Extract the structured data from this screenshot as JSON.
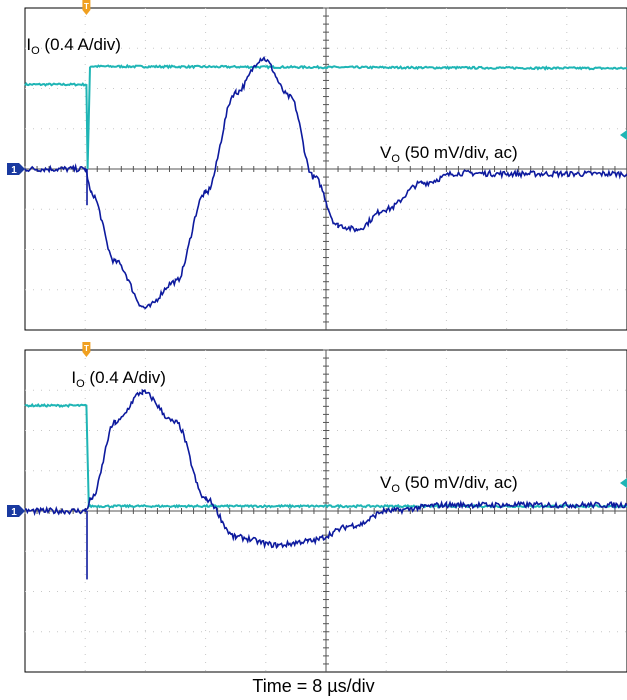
{
  "colors": {
    "current_trace": "#1fb5b5",
    "voltage_trace": "#0d1a9e",
    "trigger_marker": "#f0a020",
    "ground_marker": "#1a3aa0",
    "grid": "#c8c8c8",
    "frame": "#000000"
  },
  "x_axis_label": "Time = 8 µs/div",
  "chart_data": [
    {
      "type": "line",
      "title": "",
      "grid": true,
      "divisions": {
        "x": 10,
        "y": 8
      },
      "markers": {
        "trigger": "T",
        "ground": "1"
      },
      "series": [
        {
          "name": "IO (0.4 A/div)",
          "label_main": "I",
          "label_sub": "O",
          "label_rest": " (0.4 A/div)",
          "points": [
            [
              0,
              2.1
            ],
            [
              1.02,
              2.1
            ],
            [
              1.04,
              0.0
            ],
            [
              1.08,
              2.55
            ],
            [
              10,
              2.5
            ]
          ]
        },
        {
          "name": "VO (50 mV/div, ac)",
          "label_main": "V",
          "label_sub": "O",
          "label_rest": " (50 mV/div, ac)",
          "points": [
            [
              0,
              0.0
            ],
            [
              1.0,
              0.0
            ],
            [
              1.1,
              -0.6
            ],
            [
              1.5,
              -2.3
            ],
            [
              2.0,
              -3.45
            ],
            [
              2.5,
              -2.8
            ],
            [
              3.0,
              -0.6
            ],
            [
              3.5,
              1.9
            ],
            [
              3.95,
              2.75
            ],
            [
              4.4,
              1.8
            ],
            [
              4.8,
              -0.2
            ],
            [
              5.2,
              -1.4
            ],
            [
              5.5,
              -1.5
            ],
            [
              6.0,
              -1.0
            ],
            [
              6.6,
              -0.35
            ],
            [
              7.2,
              -0.1
            ],
            [
              8.0,
              -0.12
            ],
            [
              9.0,
              -0.12
            ],
            [
              10,
              -0.12
            ]
          ]
        }
      ]
    },
    {
      "type": "line",
      "title": "",
      "grid": true,
      "divisions": {
        "x": 10,
        "y": 8
      },
      "markers": {
        "trigger": "T",
        "ground": "1"
      },
      "series": [
        {
          "name": "IO (0.4 A/div)",
          "label_main": "I",
          "label_sub": "O",
          "label_rest": " (0.4 A/div)",
          "points": [
            [
              0,
              2.62
            ],
            [
              1.02,
              2.62
            ],
            [
              1.06,
              0.12
            ],
            [
              10,
              0.12
            ]
          ]
        },
        {
          "name": "VO (50 mV/div, ac)",
          "label_main": "V",
          "label_sub": "O",
          "label_rest": " (50 mV/div, ac)",
          "points": [
            [
              0,
              0.0
            ],
            [
              1.0,
              0.0
            ],
            [
              1.1,
              0.3
            ],
            [
              1.5,
              2.2
            ],
            [
              1.95,
              2.95
            ],
            [
              2.5,
              2.2
            ],
            [
              3.0,
              0.3
            ],
            [
              3.5,
              -0.65
            ],
            [
              4.2,
              -0.85
            ],
            [
              4.7,
              -0.75
            ],
            [
              5.5,
              -0.35
            ],
            [
              6.0,
              0.0
            ],
            [
              7.0,
              0.15
            ],
            [
              8.0,
              0.15
            ],
            [
              10,
              0.15
            ]
          ]
        }
      ]
    }
  ]
}
